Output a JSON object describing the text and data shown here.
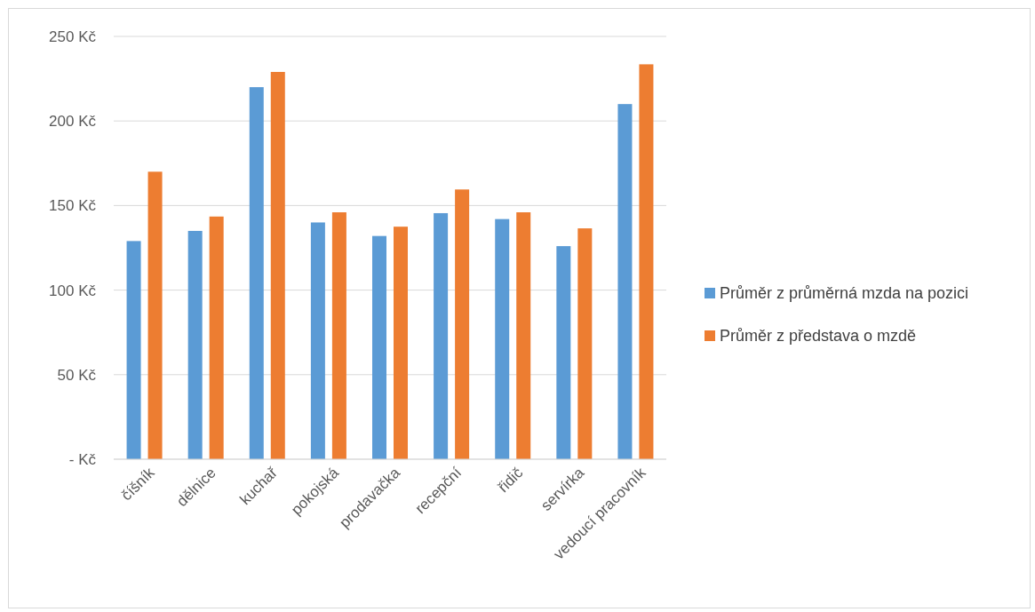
{
  "chart_data": {
    "type": "bar",
    "categories": [
      "číšník",
      "dělnice",
      "kuchař",
      "pokojská",
      "prodavačka",
      "recepční",
      "řidič",
      "servírka",
      "vedoucí pracovník"
    ],
    "series": [
      {
        "name": "Průměr z průměrná mzda na pozici",
        "color": "#5b9bd5",
        "values": [
          129,
          135,
          220,
          140,
          132,
          145.5,
          142,
          126,
          210
        ]
      },
      {
        "name": "Průměr z představa o mzdě",
        "color": "#ed7d31",
        "values": [
          170,
          143.5,
          229,
          146,
          137.5,
          159.5,
          146,
          136.5,
          233.5
        ]
      }
    ],
    "ylim": [
      0,
      250
    ],
    "yticks": [
      {
        "value": 0,
        "label": "-   Kč"
      },
      {
        "value": 50,
        "label": "50 Kč"
      },
      {
        "value": 100,
        "label": "100 Kč"
      },
      {
        "value": 150,
        "label": "150 Kč"
      },
      {
        "value": 200,
        "label": "200 Kč"
      },
      {
        "value": 250,
        "label": "250 Kč"
      }
    ],
    "grid": "y",
    "legend": "right"
  }
}
